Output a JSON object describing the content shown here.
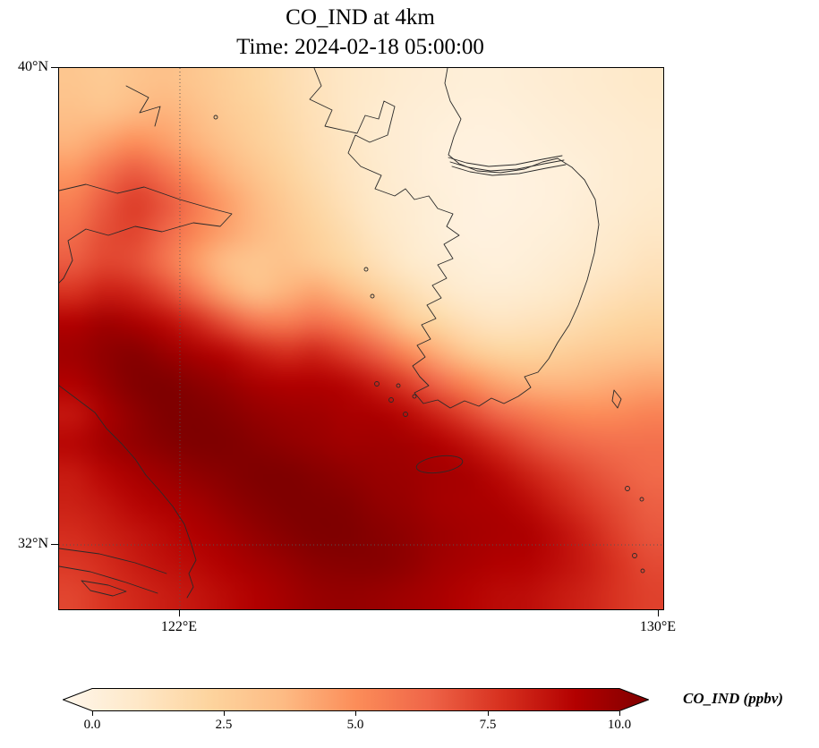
{
  "figure": {
    "title": "CO_IND at 4km",
    "subtitle": "Time: 2024-02-18 05:00:00"
  },
  "axes": {
    "lat_ticks": [
      {
        "label": "40°N",
        "value": 40
      },
      {
        "label": "32°N",
        "value": 32
      }
    ],
    "lon_ticks": [
      {
        "label": "122°E",
        "value": 122
      },
      {
        "label": "130°E",
        "value": 130
      }
    ],
    "lon_range": [
      120,
      130
    ],
    "lat_range": [
      31,
      40
    ],
    "gridlines": "dotted at 122E and 32N"
  },
  "colorbar": {
    "label": "CO_IND (ppbv)",
    "ticks": [
      "0.0",
      "2.5",
      "5.0",
      "7.5",
      "10.0"
    ],
    "tick_values": [
      0,
      2.5,
      5,
      7.5,
      10
    ],
    "min": 0,
    "max": 10,
    "extend": "both",
    "colormap": "OrRd",
    "stops": [
      "#fff7ec",
      "#fee8c8",
      "#fdd49e",
      "#fdbb84",
      "#fc8d59",
      "#ef6548",
      "#d7301f",
      "#b30000",
      "#7f0000"
    ]
  },
  "chart_data": {
    "type": "heatmap",
    "title": "CO_IND at 4km",
    "subtitle": "Time: 2024-02-18 05:00:00",
    "variable": "CO_IND",
    "units": "ppbv",
    "level": "4km",
    "time": "2024-02-18 05:00:00",
    "colormap": "OrRd",
    "value_range": [
      0,
      10
    ],
    "lon_range": [
      120,
      130
    ],
    "lat_range": [
      31,
      40
    ],
    "grid_shape": [
      18,
      20
    ],
    "grid_orientation": "rows north (40N) to south (31N), cols west (120E) to east (130E)",
    "grid": [
      [
        3.2,
        3.0,
        3.3,
        3.5,
        3.2,
        2.8,
        2.4,
        2.0,
        1.6,
        1.3,
        1.1,
        0.9,
        0.8,
        0.7,
        0.7,
        0.8,
        0.9,
        1.0,
        1.1,
        1.2
      ],
      [
        3.5,
        3.4,
        3.8,
        4.0,
        3.6,
        3.0,
        2.6,
        2.1,
        1.7,
        1.3,
        1.0,
        0.8,
        0.7,
        0.6,
        0.6,
        0.7,
        0.8,
        0.9,
        1.0,
        1.1
      ],
      [
        4.0,
        4.5,
        5.0,
        4.6,
        4.0,
        3.4,
        2.8,
        2.3,
        1.8,
        1.4,
        1.0,
        0.8,
        0.6,
        0.5,
        0.5,
        0.6,
        0.7,
        0.8,
        0.9,
        1.0
      ],
      [
        4.8,
        5.8,
        6.5,
        5.8,
        4.8,
        4.0,
        3.3,
        2.6,
        2.0,
        1.5,
        1.1,
        0.8,
        0.6,
        0.5,
        0.4,
        0.5,
        0.6,
        0.7,
        0.9,
        1.0
      ],
      [
        5.5,
        6.5,
        7.2,
        6.6,
        5.6,
        4.6,
        3.8,
        3.0,
        2.3,
        1.7,
        1.2,
        0.9,
        0.7,
        0.5,
        0.4,
        0.5,
        0.6,
        0.8,
        0.9,
        1.1
      ],
      [
        6.0,
        6.8,
        7.0,
        6.2,
        5.2,
        4.4,
        3.8,
        3.2,
        2.6,
        2.0,
        1.4,
        1.0,
        0.7,
        0.5,
        0.5,
        0.6,
        0.7,
        0.9,
        1.1,
        1.3
      ],
      [
        6.5,
        7.0,
        6.8,
        5.8,
        4.6,
        3.6,
        3.2,
        3.4,
        3.0,
        2.4,
        1.8,
        1.2,
        0.9,
        0.7,
        0.6,
        0.7,
        0.9,
        1.1,
        1.3,
        1.6
      ],
      [
        7.5,
        8.0,
        7.8,
        7.0,
        5.8,
        4.4,
        3.6,
        4.0,
        4.4,
        3.8,
        2.8,
        2.0,
        1.4,
        1.0,
        0.9,
        1.0,
        1.2,
        1.5,
        1.8,
        2.0
      ],
      [
        8.8,
        9.2,
        9.0,
        8.5,
        7.8,
        6.8,
        5.8,
        5.6,
        6.0,
        5.4,
        4.4,
        3.2,
        2.4,
        1.8,
        1.5,
        1.6,
        1.8,
        2.1,
        2.4,
        2.6
      ],
      [
        9.2,
        9.6,
        9.8,
        9.4,
        9.0,
        8.6,
        8.0,
        7.6,
        7.8,
        7.2,
        6.4,
        5.2,
        4.2,
        3.2,
        2.6,
        2.5,
        2.7,
        3.0,
        3.2,
        3.4
      ],
      [
        8.8,
        9.4,
        9.9,
        10.0,
        9.7,
        9.4,
        9.0,
        8.8,
        8.8,
        8.6,
        8.0,
        7.2,
        6.2,
        5.2,
        4.4,
        4.0,
        3.9,
        4.0,
        4.2,
        4.4
      ],
      [
        8.2,
        9.0,
        9.6,
        10.0,
        10.0,
        9.8,
        9.5,
        9.3,
        9.2,
        9.0,
        8.9,
        8.5,
        7.8,
        7.0,
        6.2,
        5.6,
        5.2,
        5.0,
        5.1,
        5.3
      ],
      [
        8.6,
        9.1,
        9.5,
        9.8,
        10.0,
        10.0,
        9.8,
        9.6,
        9.4,
        9.2,
        9.2,
        9.1,
        8.8,
        8.3,
        7.6,
        6.9,
        6.4,
        6.1,
        5.9,
        5.9
      ],
      [
        8.1,
        8.6,
        9.0,
        9.3,
        9.6,
        9.8,
        10.0,
        10.0,
        9.8,
        9.6,
        9.4,
        9.3,
        9.1,
        9.0,
        8.5,
        7.9,
        7.3,
        6.8,
        6.4,
        6.1
      ],
      [
        7.9,
        8.2,
        8.6,
        8.9,
        9.1,
        9.5,
        9.8,
        10.0,
        10.0,
        9.9,
        9.6,
        9.4,
        9.1,
        9.0,
        8.9,
        8.5,
        7.9,
        7.3,
        6.8,
        6.4
      ],
      [
        7.6,
        7.9,
        8.2,
        8.5,
        8.8,
        9.1,
        9.5,
        9.8,
        10.0,
        10.0,
        9.8,
        9.6,
        9.3,
        9.1,
        9.0,
        8.9,
        8.4,
        7.8,
        7.1,
        6.6
      ],
      [
        7.3,
        7.6,
        8.0,
        8.3,
        8.5,
        8.8,
        9.1,
        9.4,
        9.7,
        9.8,
        9.8,
        9.6,
        9.2,
        9.0,
        8.8,
        8.7,
        8.4,
        8.0,
        7.4,
        6.9
      ],
      [
        7.0,
        7.4,
        7.7,
        8.0,
        8.2,
        8.5,
        8.8,
        9.1,
        9.4,
        9.5,
        9.4,
        9.2,
        9.0,
        8.7,
        8.5,
        8.4,
        8.1,
        7.8,
        7.4,
        7.1
      ]
    ]
  }
}
